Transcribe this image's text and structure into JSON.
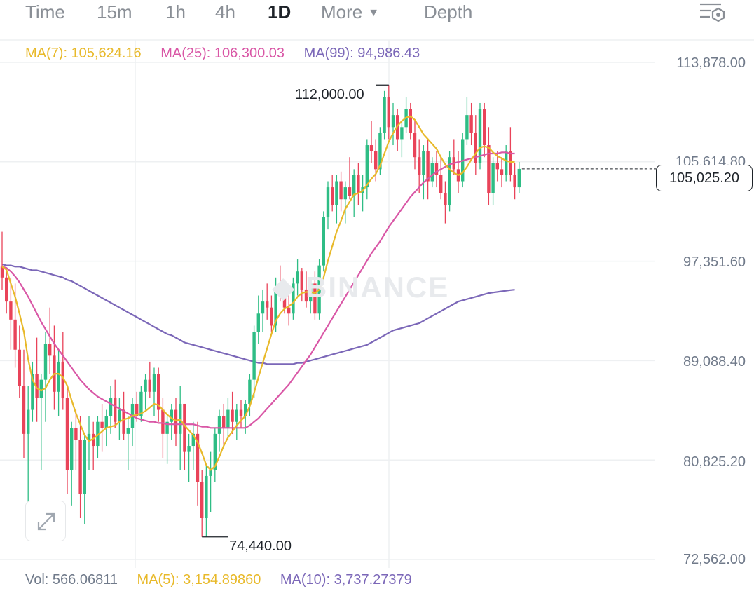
{
  "toolbar": {
    "tabs": [
      "Time",
      "15m",
      "1h",
      "4h",
      "1D",
      "More",
      "Depth"
    ],
    "active_tab": "1D",
    "settings_icon": "chart-settings-icon"
  },
  "ma_legend": {
    "ma7": "MA(7): 105,624.16",
    "ma25": "MA(25): 106,300.03",
    "ma99": "MA(99): 94,986.43"
  },
  "vol_legend": {
    "vol": "Vol: 566.06811",
    "ma5": "MA(5): 3,154.89860",
    "ma10": "MA(10): 3,737.27379"
  },
  "price_axis": {
    "labels": [
      "113,878.00",
      "105,614.80",
      "97,351.60",
      "89,088.40",
      "80,825.20",
      "72,562.00"
    ]
  },
  "current_price": "105,025.20",
  "high_label": "112,000.00",
  "low_label": "74,440.00",
  "watermark": "BINANCE",
  "colors": {
    "up": "#2ebd85",
    "down": "#e94359",
    "ma7": "#e8b92a",
    "ma25": "#d957a6",
    "ma99": "#7b67b8",
    "grid": "#eef0f2"
  },
  "chart_data": {
    "type": "candlestick",
    "interval": "1D",
    "ylim": [
      72562,
      113878
    ],
    "candles": [
      [
        96900,
        99800,
        95000,
        96000
      ],
      [
        96000,
        96800,
        93000,
        94000
      ],
      [
        94000,
        96000,
        90000,
        92500
      ],
      [
        92500,
        95500,
        88500,
        90000
      ],
      [
        90000,
        92000,
        86000,
        87000
      ],
      [
        87000,
        90000,
        81000,
        83000
      ],
      [
        83000,
        87000,
        76000,
        85000
      ],
      [
        85000,
        89000,
        84000,
        88000
      ],
      [
        88000,
        91000,
        84000,
        86000
      ],
      [
        86000,
        88000,
        80000,
        87500
      ],
      [
        87500,
        91500,
        84000,
        90500
      ],
      [
        90500,
        93500,
        88000,
        89500
      ],
      [
        89500,
        92000,
        85000,
        86500
      ],
      [
        86500,
        90000,
        84500,
        89000
      ],
      [
        89000,
        91500,
        85000,
        86000
      ],
      [
        86000,
        87000,
        78000,
        80000
      ],
      [
        80000,
        84000,
        77000,
        83500
      ],
      [
        83500,
        85000,
        80000,
        82500
      ],
      [
        82500,
        84500,
        76000,
        78000
      ],
      [
        78000,
        83000,
        75500,
        82500
      ],
      [
        82500,
        84500,
        80000,
        83000
      ],
      [
        83000,
        84000,
        80000,
        82000
      ],
      [
        82000,
        84500,
        81000,
        84000
      ],
      [
        84000,
        85500,
        81500,
        83500
      ],
      [
        83500,
        85000,
        82000,
        84500
      ],
      [
        84500,
        87000,
        83000,
        86000
      ],
      [
        86000,
        87500,
        83500,
        84000
      ],
      [
        84000,
        86000,
        82500,
        85000
      ],
      [
        85000,
        86500,
        82500,
        83000
      ],
      [
        83000,
        84500,
        80000,
        83500
      ],
      [
        83500,
        86000,
        82000,
        85500
      ],
      [
        85500,
        86500,
        84000,
        84500
      ],
      [
        84500,
        87000,
        84000,
        86500
      ],
      [
        86500,
        88000,
        85000,
        87500
      ],
      [
        87500,
        89000,
        86000,
        86500
      ],
      [
        86500,
        88500,
        84500,
        88000
      ],
      [
        88000,
        88500,
        84000,
        85000
      ],
      [
        85000,
        86000,
        81000,
        83000
      ],
      [
        83000,
        84500,
        80500,
        84000
      ],
      [
        84000,
        85500,
        82500,
        85000
      ],
      [
        85000,
        86000,
        82000,
        83000
      ],
      [
        83000,
        87000,
        80000,
        85500
      ],
      [
        85500,
        85500,
        80000,
        81500
      ],
      [
        81500,
        83000,
        79000,
        82000
      ],
      [
        82000,
        84000,
        80000,
        83000
      ],
      [
        83000,
        84000,
        77000,
        79000
      ],
      [
        79000,
        80000,
        74440,
        76000
      ],
      [
        76000,
        80500,
        74440,
        79500
      ],
      [
        79500,
        81500,
        76500,
        80000
      ],
      [
        80000,
        83500,
        79000,
        83000
      ],
      [
        83000,
        85000,
        81500,
        84500
      ],
      [
        84500,
        85500,
        82000,
        83500
      ],
      [
        83500,
        86000,
        82500,
        85000
      ],
      [
        85000,
        86500,
        83000,
        84000
      ],
      [
        84000,
        85500,
        82500,
        85000
      ],
      [
        85000,
        85800,
        83500,
        84500
      ],
      [
        84500,
        85800,
        83000,
        85500
      ],
      [
        85500,
        88000,
        84500,
        87500
      ],
      [
        87500,
        92000,
        86000,
        91500
      ],
      [
        91500,
        94500,
        90500,
        93000
      ],
      [
        93000,
        95000,
        91500,
        94000
      ],
      [
        94000,
        95500,
        92500,
        93500
      ],
      [
        93500,
        94500,
        91500,
        92000
      ],
      [
        92000,
        96000,
        91500,
        95000
      ],
      [
        95000,
        97000,
        94000,
        94500
      ],
      [
        94500,
        95500,
        93000,
        93500
      ],
      [
        93500,
        94500,
        92000,
        93000
      ],
      [
        93000,
        96000,
        92500,
        95500
      ],
      [
        95500,
        97500,
        94500,
        96500
      ],
      [
        96500,
        96800,
        94000,
        95000
      ],
      [
        95000,
        96500,
        93500,
        94000
      ],
      [
        94000,
        96000,
        93000,
        95500
      ],
      [
        95500,
        96500,
        92500,
        93000
      ],
      [
        93000,
        97500,
        92500,
        97000
      ],
      [
        97000,
        101500,
        96500,
        101000
      ],
      [
        101000,
        104000,
        100000,
        103500
      ],
      [
        103500,
        104500,
        101500,
        102000
      ],
      [
        102000,
        104500,
        100500,
        104000
      ],
      [
        104000,
        104800,
        101500,
        102500
      ],
      [
        102500,
        104000,
        100500,
        103500
      ],
      [
        103500,
        106000,
        102500,
        102800
      ],
      [
        102800,
        105000,
        101000,
        104500
      ],
      [
        104500,
        105500,
        102000,
        103000
      ],
      [
        103000,
        104500,
        101500,
        103500
      ],
      [
        103500,
        107500,
        102500,
        107000
      ],
      [
        107000,
        109000,
        105500,
        106500
      ],
      [
        106500,
        107500,
        104000,
        105000
      ],
      [
        105000,
        108500,
        104500,
        108000
      ],
      [
        108000,
        111500,
        107500,
        111000
      ],
      [
        111000,
        112000,
        107500,
        108500
      ],
      [
        108500,
        110500,
        107000,
        109500
      ],
      [
        109500,
        110000,
        106500,
        107500
      ],
      [
        107500,
        109000,
        106000,
        108500
      ],
      [
        108500,
        111000,
        108000,
        110000
      ],
      [
        110000,
        110500,
        107500,
        108000
      ],
      [
        108000,
        109000,
        105000,
        106000
      ],
      [
        106000,
        107500,
        103000,
        104500
      ],
      [
        104500,
        107000,
        102500,
        106500
      ],
      [
        106500,
        107500,
        102500,
        104000
      ],
      [
        104000,
        106000,
        103500,
        105500
      ],
      [
        105500,
        106500,
        103500,
        104500
      ],
      [
        104500,
        106000,
        102500,
        103000
      ],
      [
        103000,
        104000,
        100500,
        102000
      ],
      [
        102000,
        106500,
        101500,
        106000
      ],
      [
        106000,
        107500,
        104500,
        105000
      ],
      [
        105000,
        106500,
        103000,
        104000
      ],
      [
        104000,
        108000,
        103500,
        107500
      ],
      [
        107500,
        111000,
        107000,
        109500
      ],
      [
        109500,
        110500,
        107000,
        108000
      ],
      [
        108000,
        109500,
        104500,
        105500
      ],
      [
        105500,
        110500,
        105000,
        110000
      ],
      [
        110000,
        110500,
        106000,
        107000
      ],
      [
        107000,
        108500,
        102000,
        103000
      ],
      [
        103000,
        106000,
        102000,
        105500
      ],
      [
        105500,
        106500,
        104000,
        105000
      ],
      [
        105000,
        106000,
        103500,
        104500
      ],
      [
        104500,
        107000,
        104000,
        106500
      ],
      [
        106500,
        108500,
        104000,
        104500
      ],
      [
        104500,
        105500,
        102500,
        103500
      ],
      [
        103500,
        105600,
        103000,
        105025.2
      ]
    ],
    "ma7": [
      96900,
      96650,
      95500,
      94400,
      93000,
      91500,
      89200,
      87500,
      86800,
      86600,
      86800,
      87500,
      88000,
      88000,
      87700,
      87000,
      85800,
      84700,
      83800,
      82900,
      82400,
      82600,
      82900,
      83200,
      83500,
      83600,
      83700,
      84000,
      84200,
      84300,
      84500,
      84600,
      84700,
      84900,
      85200,
      85500,
      85400,
      85000,
      84600,
      84300,
      84100,
      84200,
      83700,
      83300,
      82900,
      82300,
      81400,
      80400,
      80000,
      80300,
      81100,
      82000,
      82700,
      83200,
      83700,
      84100,
      84500,
      85300,
      86400,
      87700,
      88900,
      90100,
      91300,
      92400,
      93000,
      93400,
      93600,
      93900,
      94400,
      94700,
      94800,
      94800,
      94700,
      95000,
      96000,
      97400,
      98600,
      99800,
      100700,
      101700,
      102300,
      102900,
      103000,
      103200,
      103700,
      104200,
      104600,
      105300,
      106300,
      107300,
      108000,
      108600,
      109000,
      109300,
      109400,
      109100,
      108500,
      107900,
      107500,
      107100,
      106700,
      106000,
      105400,
      105000,
      104700,
      104500,
      104700,
      105200,
      105800,
      106300,
      106800,
      106900,
      106800,
      106400,
      106100,
      105900,
      105700,
      105600,
      105624.16
    ],
    "ma25": [
      96900,
      96800,
      96500,
      96100,
      95600,
      95000,
      94400,
      93700,
      93000,
      92300,
      91700,
      91100,
      90500,
      90000,
      89500,
      89000,
      88500,
      88000,
      87500,
      87100,
      86700,
      86400,
      86100,
      85900,
      85700,
      85500,
      85300,
      85100,
      84900,
      84700,
      84500,
      84300,
      84200,
      84100,
      84000,
      84000,
      83900,
      83900,
      83800,
      83800,
      83800,
      83800,
      83800,
      83800,
      83800,
      83700,
      83600,
      83600,
      83500,
      83500,
      83500,
      83500,
      83500,
      83500,
      83500,
      83500,
      83500,
      83700,
      84000,
      84300,
      84700,
      85100,
      85500,
      85900,
      86300,
      86700,
      87100,
      87600,
      88100,
      88600,
      89100,
      89600,
      90200,
      90800,
      91400,
      92000,
      92600,
      93200,
      93800,
      94400,
      95000,
      95600,
      96200,
      96800,
      97400,
      98000,
      98500,
      99000,
      99600,
      100200,
      100700,
      101200,
      101700,
      102200,
      102700,
      103100,
      103500,
      103900,
      104200,
      104500,
      104800,
      105000,
      105200,
      105400,
      105500,
      105600,
      105700,
      105800,
      105900,
      106000,
      106100,
      106200,
      106300,
      106300,
      106300,
      106400,
      106400,
      106300,
      106300.03
    ],
    "ma99": [
      97100,
      97000,
      97000,
      96900,
      96900,
      96800,
      96700,
      96600,
      96600,
      96500,
      96400,
      96300,
      96200,
      96100,
      96000,
      95800,
      95700,
      95500,
      95300,
      95100,
      94900,
      94700,
      94500,
      94300,
      94100,
      93900,
      93700,
      93500,
      93300,
      93100,
      92900,
      92700,
      92500,
      92300,
      92100,
      91900,
      91700,
      91500,
      91300,
      91200,
      91000,
      90800,
      90600,
      90500,
      90400,
      90300,
      90200,
      90100,
      90000,
      89900,
      89800,
      89700,
      89600,
      89500,
      89400,
      89300,
      89200,
      89100,
      89000,
      88900,
      88900,
      88800,
      88800,
      88800,
      88800,
      88800,
      88800,
      88800,
      88900,
      88900,
      89000,
      89100,
      89200,
      89300,
      89400,
      89500,
      89600,
      89700,
      89800,
      89900,
      90000,
      90100,
      90200,
      90300,
      90400,
      90600,
      90800,
      91000,
      91200,
      91400,
      91600,
      91700,
      91800,
      91900,
      92000,
      92100,
      92200,
      92400,
      92600,
      92800,
      93000,
      93200,
      93400,
      93600,
      93800,
      94000,
      94100,
      94200,
      94300,
      94400,
      94500,
      94600,
      94700,
      94750,
      94800,
      94850,
      94900,
      94950,
      94986.43
    ]
  }
}
